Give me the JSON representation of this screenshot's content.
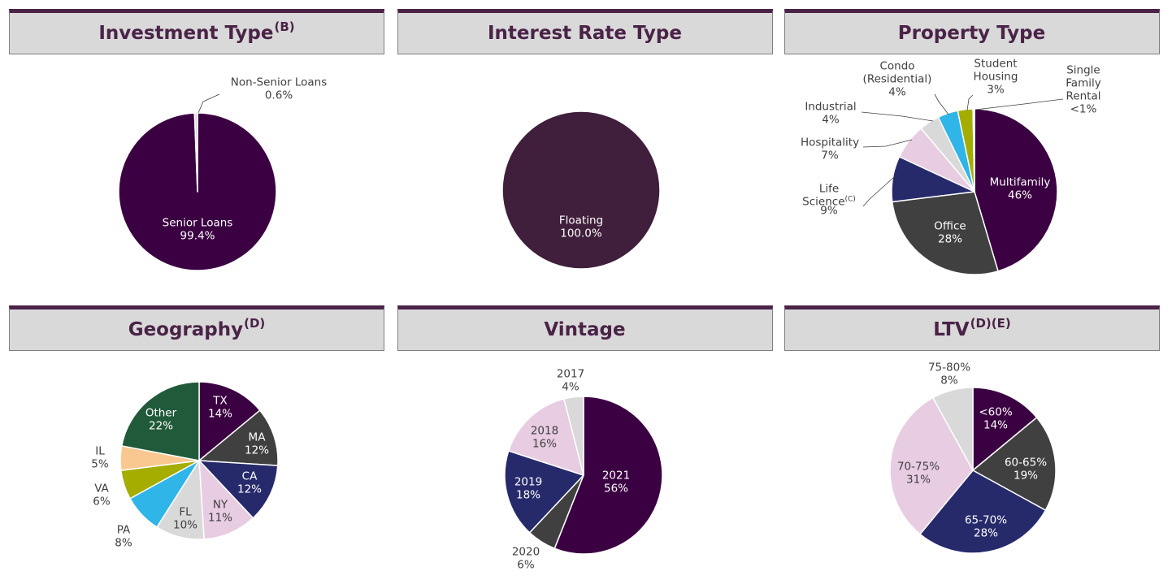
{
  "panels": [
    {
      "title": "Investment Type",
      "sup": "(B)"
    },
    {
      "title": "Interest Rate Type",
      "sup": ""
    },
    {
      "title": "Property Type",
      "sup": ""
    },
    {
      "title": "Geography",
      "sup": "(D)"
    },
    {
      "title": "Vintage",
      "sup": ""
    },
    {
      "title": "LTV",
      "sup": "(D)(E)"
    }
  ],
  "chart_data": [
    {
      "type": "pie",
      "title": "Investment Type(B)",
      "slices": [
        {
          "label": "Senior Loans",
          "value_label": "99.4%",
          "value": 99.4,
          "color": "#3b0042",
          "label_color": "#ffffff"
        },
        {
          "label": "Non-Senior Loans",
          "value_label": "0.6%",
          "value": 0.6,
          "color": "#d9d9d9",
          "label_color": "#404040"
        }
      ]
    },
    {
      "type": "pie",
      "title": "Interest Rate Type",
      "slices": [
        {
          "label": "Floating",
          "value_label": "100.0%",
          "value": 100.0,
          "color": "#3f1f3b",
          "label_color": "#ffffff"
        }
      ]
    },
    {
      "type": "pie",
      "title": "Property Type",
      "slices": [
        {
          "label": "Multifamily",
          "value_label": "46%",
          "value": 46,
          "color": "#3b0042",
          "label_color": "#ffffff"
        },
        {
          "label": "Office",
          "value_label": "28%",
          "value": 28,
          "color": "#404040",
          "label_color": "#ffffff"
        },
        {
          "label": "Life Science(C)",
          "value_label": "9%",
          "value": 9,
          "color": "#262a6b",
          "label_color": "#404040"
        },
        {
          "label": "Hospitality",
          "value_label": "7%",
          "value": 7,
          "color": "#e8cce2",
          "label_color": "#404040"
        },
        {
          "label": "Industrial",
          "value_label": "4%",
          "value": 4,
          "color": "#d9d9d9",
          "label_color": "#404040"
        },
        {
          "label": "Condo (Residential)",
          "value_label": "4%",
          "value": 4,
          "color": "#2fb5e8",
          "label_color": "#404040"
        },
        {
          "label": "Student Housing",
          "value_label": "3%",
          "value": 3,
          "color": "#a4ad00",
          "label_color": "#404040"
        },
        {
          "label": "Single Family Rental",
          "value_label": "<1%",
          "value": 0.3,
          "color": "#e8cce2",
          "label_color": "#404040"
        }
      ]
    },
    {
      "type": "pie",
      "title": "Geography(D)",
      "slices": [
        {
          "label": "TX",
          "value_label": "14%",
          "value": 14,
          "color": "#3b0042",
          "label_color": "#ffffff"
        },
        {
          "label": "MA",
          "value_label": "12%",
          "value": 12,
          "color": "#404040",
          "label_color": "#ffffff"
        },
        {
          "label": "CA",
          "value_label": "12%",
          "value": 12,
          "color": "#262a6b",
          "label_color": "#ffffff"
        },
        {
          "label": "NY",
          "value_label": "11%",
          "value": 11,
          "color": "#e8cce2",
          "label_color": "#404040"
        },
        {
          "label": "FL",
          "value_label": "10%",
          "value": 10,
          "color": "#d9d9d9",
          "label_color": "#404040"
        },
        {
          "label": "PA",
          "value_label": "8%",
          "value": 8,
          "color": "#2fb5e8",
          "label_color": "#404040"
        },
        {
          "label": "VA",
          "value_label": "6%",
          "value": 6,
          "color": "#a4ad00",
          "label_color": "#404040"
        },
        {
          "label": "IL",
          "value_label": "5%",
          "value": 5,
          "color": "#f9c890",
          "label_color": "#404040"
        },
        {
          "label": "Other",
          "value_label": "22%",
          "value": 22,
          "color": "#215a3a",
          "label_color": "#ffffff"
        }
      ]
    },
    {
      "type": "pie",
      "title": "Vintage",
      "slices": [
        {
          "label": "2021",
          "value_label": "56%",
          "value": 56,
          "color": "#3b0042",
          "label_color": "#ffffff"
        },
        {
          "label": "2020",
          "value_label": "6%",
          "value": 6,
          "color": "#404040",
          "label_color": "#404040"
        },
        {
          "label": "2019",
          "value_label": "18%",
          "value": 18,
          "color": "#262a6b",
          "label_color": "#ffffff"
        },
        {
          "label": "2018",
          "value_label": "16%",
          "value": 16,
          "color": "#e8cce2",
          "label_color": "#404040"
        },
        {
          "label": "2017",
          "value_label": "4%",
          "value": 4,
          "color": "#d9d9d9",
          "label_color": "#404040"
        }
      ]
    },
    {
      "type": "pie",
      "title": "LTV(D)(E)",
      "slices": [
        {
          "label": "<60%",
          "value_label": "14%",
          "value": 14,
          "color": "#3b0042",
          "label_color": "#ffffff"
        },
        {
          "label": "60-65%",
          "value_label": "19%",
          "value": 19,
          "color": "#404040",
          "label_color": "#ffffff"
        },
        {
          "label": "65-70%",
          "value_label": "28%",
          "value": 28,
          "color": "#262a6b",
          "label_color": "#ffffff"
        },
        {
          "label": "70-75%",
          "value_label": "31%",
          "value": 31,
          "color": "#e8cce2",
          "label_color": "#404040"
        },
        {
          "label": "75-80%",
          "value_label": "8%",
          "value": 8,
          "color": "#d9d9d9",
          "label_color": "#404040"
        }
      ]
    }
  ]
}
